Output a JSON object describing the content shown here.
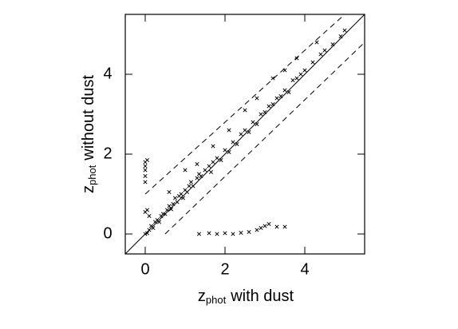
{
  "chart_data": {
    "type": "scatter",
    "xlabel": [
      "z",
      "phot",
      "with dust"
    ],
    "ylabel": [
      "z",
      "phot",
      "without dust"
    ],
    "xlim": [
      -0.5,
      5.5
    ],
    "ylim": [
      -0.5,
      5.5
    ],
    "xticks": [
      0,
      2,
      4
    ],
    "yticks": [
      0,
      2,
      4
    ],
    "color": "#000000",
    "x": [
      0,
      0.05,
      0.1,
      0.15,
      0.2,
      0.25,
      0.3,
      0.35,
      0.4,
      0.45,
      0.5,
      0.55,
      0.6,
      0.65,
      0.7,
      0.75,
      0.8,
      0.85,
      0.9,
      0.95,
      1.0,
      1.05,
      1.1,
      1.15,
      1.2,
      1.3,
      1.35,
      1.4,
      1.5,
      1.6,
      1.65,
      1.7,
      1.8,
      1.9,
      2.0,
      2.1,
      2.2,
      2.3,
      2.4,
      2.5,
      2.6,
      2.7,
      2.8,
      2.9,
      3.0,
      3.1,
      3.2,
      3.3,
      3.4,
      3.5,
      3.6,
      3.7,
      3.8,
      3.9,
      4.0,
      4.2,
      4.4,
      4.5,
      4.7,
      4.9,
      5.0,
      0.6,
      1.0,
      1.3,
      1.7,
      2.1,
      2.5,
      2.8,
      3.2,
      3.5,
      3.8,
      4.3,
      0,
      0,
      0,
      0,
      0,
      0.05,
      0,
      0.05,
      0.1,
      1.35,
      1.6,
      1.8,
      2.0,
      2.2,
      2.4,
      2.6,
      2.8,
      2.9,
      3.0,
      3.1,
      3.3,
      3.5
    ],
    "y": [
      0,
      0.02,
      0.1,
      0.2,
      0.15,
      0.3,
      0.35,
      0.3,
      0.45,
      0.5,
      0.5,
      0.6,
      0.7,
      0.62,
      0.75,
      0.9,
      0.8,
      0.95,
      1.0,
      0.9,
      1.1,
      1.05,
      1.2,
      1.3,
      1.2,
      1.4,
      1.5,
      1.45,
      1.6,
      1.7,
      1.55,
      1.8,
      1.9,
      1.85,
      2.1,
      2.05,
      2.3,
      2.25,
      2.5,
      2.6,
      2.55,
      2.8,
      2.75,
      3.0,
      3.05,
      3.2,
      3.25,
      3.4,
      3.45,
      3.6,
      3.55,
      3.85,
      3.9,
      4.0,
      4.1,
      4.3,
      4.5,
      4.6,
      4.75,
      4.95,
      5.1,
      1.05,
      1.6,
      1.75,
      2.2,
      2.6,
      3.1,
      3.4,
      3.9,
      4.1,
      4.4,
      4.8,
      1.3,
      1.45,
      1.6,
      1.7,
      1.8,
      1.85,
      0.55,
      0.6,
      0.45,
      0.0,
      0.02,
      0.0,
      0.02,
      0.0,
      0.03,
      0.05,
      0.1,
      0.15,
      0.2,
      0.25,
      0.18,
      0.18
    ],
    "lines": [
      {
        "style": "solid",
        "x": [
          -0.5,
          5.5
        ],
        "y": [
          -0.5,
          5.5
        ]
      },
      {
        "style": "dashed",
        "x": [
          0,
          5.0
        ],
        "y": [
          1.0,
          5.5
        ]
      },
      {
        "style": "dashed",
        "x": [
          0.5,
          5.5
        ],
        "y": [
          0,
          4.8
        ]
      }
    ]
  }
}
